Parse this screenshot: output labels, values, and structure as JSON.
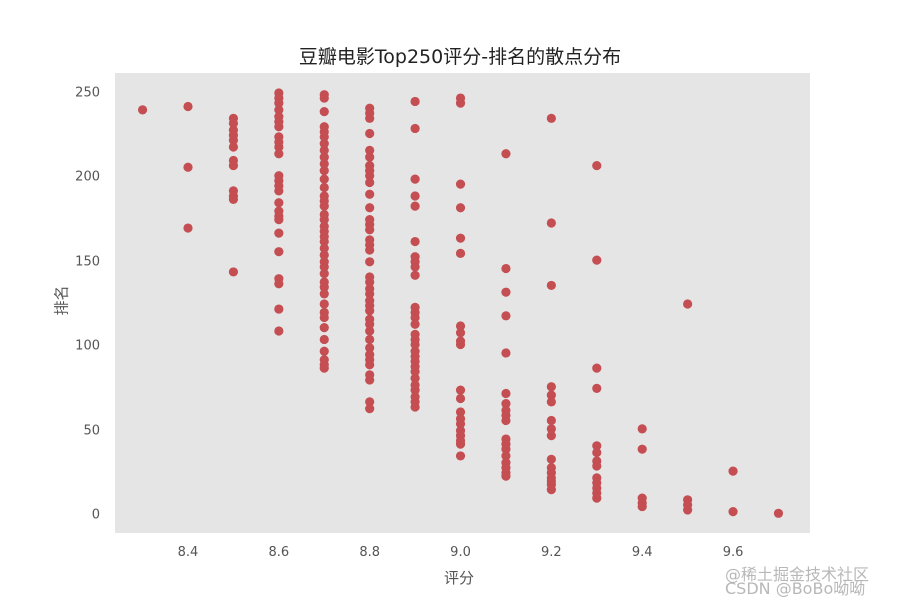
{
  "chart_data": {
    "type": "scatter",
    "title": "豆瓣电影Top250评分-排名的散点分布",
    "xlabel": "评分",
    "ylabel": "排名",
    "xlim": [
      8.24,
      9.77
    ],
    "ylim": [
      -11,
      262
    ],
    "grid": false,
    "background": "#e5e5e5",
    "marker_color": "#c44e52",
    "xticks": [
      "8.4",
      "8.6",
      "8.8",
      "9.0",
      "9.2",
      "9.4",
      "9.6"
    ],
    "xtick_values": [
      8.4,
      8.6,
      8.8,
      9.0,
      9.2,
      9.4,
      9.6
    ],
    "yticks": [
      "0",
      "50",
      "100",
      "150",
      "200",
      "250"
    ],
    "ytick_values": [
      0,
      50,
      100,
      150,
      200,
      250
    ],
    "points_by_score": [
      {
        "x": 8.3,
        "ranks": [
          240
        ]
      },
      {
        "x": 8.4,
        "ranks": [
          242,
          206,
          170
        ]
      },
      {
        "x": 8.5,
        "ranks": [
          235,
          232,
          228,
          225,
          222,
          218,
          210,
          207,
          192,
          189,
          187,
          144
        ]
      },
      {
        "x": 8.6,
        "ranks": [
          250,
          247,
          244,
          240,
          236,
          233,
          230,
          224,
          221,
          218,
          214,
          201,
          198,
          195,
          192,
          185,
          180,
          177,
          175,
          167,
          156,
          140,
          137,
          122,
          109
        ]
      },
      {
        "x": 8.7,
        "ranks": [
          249,
          247,
          239,
          230,
          227,
          224,
          220,
          216,
          212,
          208,
          204,
          199,
          194,
          189,
          186,
          183,
          178,
          175,
          171,
          168,
          165,
          162,
          158,
          154,
          150,
          147,
          143,
          138,
          135,
          131,
          125,
          120,
          117,
          111,
          104,
          97,
          92,
          89,
          87
        ]
      },
      {
        "x": 8.8,
        "ranks": [
          241,
          238,
          235,
          226,
          216,
          212,
          207,
          204,
          201,
          197,
          190,
          182,
          175,
          172,
          169,
          163,
          160,
          157,
          150,
          141,
          138,
          134,
          131,
          127,
          124,
          121,
          116,
          113,
          109,
          104,
          99,
          95,
          92,
          89,
          83,
          80,
          67,
          63
        ]
      },
      {
        "x": 8.9,
        "ranks": [
          245,
          229,
          199,
          189,
          183,
          162,
          153,
          150,
          147,
          142,
          123,
          120,
          117,
          113,
          107,
          104,
          101,
          97,
          94,
          91,
          88,
          85,
          81,
          77,
          74,
          70,
          67,
          64
        ]
      },
      {
        "x": 9.0,
        "ranks": [
          247,
          244,
          196,
          182,
          164,
          155,
          112,
          108,
          103,
          101,
          74,
          69,
          61,
          57,
          54,
          50,
          47,
          44,
          42,
          35
        ]
      },
      {
        "x": 9.1,
        "ranks": [
          214,
          146,
          132,
          118,
          96,
          72,
          66,
          62,
          59,
          56,
          45,
          42,
          39,
          35,
          31,
          28,
          25,
          23
        ]
      },
      {
        "x": 9.2,
        "ranks": [
          235,
          173,
          136,
          76,
          71,
          67,
          56,
          51,
          47,
          33,
          28,
          25,
          22,
          20,
          18,
          15
        ]
      },
      {
        "x": 9.3,
        "ranks": [
          207,
          151,
          87,
          75,
          41,
          37,
          32,
          29,
          22,
          19,
          16,
          13,
          10
        ]
      },
      {
        "x": 9.4,
        "ranks": [
          51,
          39,
          10,
          7,
          5
        ]
      },
      {
        "x": 9.5,
        "ranks": [
          125,
          9,
          6,
          3
        ]
      },
      {
        "x": 9.6,
        "ranks": [
          26,
          2
        ]
      },
      {
        "x": 9.7,
        "ranks": [
          1
        ]
      }
    ]
  },
  "watermark": {
    "line1": "@稀土掘金技术社区",
    "line2": "CSDN @BoBo呦呦"
  }
}
